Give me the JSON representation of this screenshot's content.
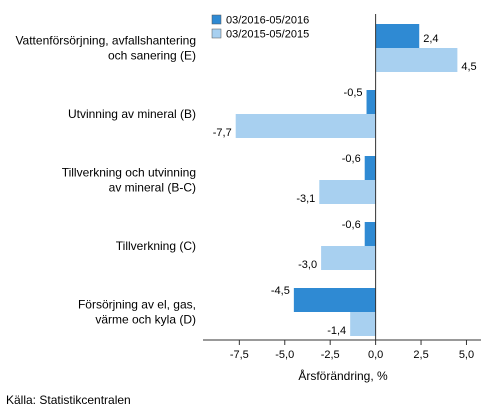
{
  "chart_data": {
    "type": "bar",
    "orientation": "horizontal",
    "categories": [
      [
        "Vattenförsörjning, avfallshantering",
        "och sanering (E)"
      ],
      [
        "Utvinning av mineral (B)"
      ],
      [
        "Tillverkning och utvinning",
        "av mineral (B-C)"
      ],
      [
        "Tillverkning (C)"
      ],
      [
        "Försörjning av el, gas,",
        "värme och kyla (D)"
      ]
    ],
    "series": [
      {
        "name": "03/2016-05/2016",
        "color": "#2f8ad3",
        "values": [
          2.4,
          -0.5,
          -0.6,
          -0.6,
          -4.5
        ],
        "labels": [
          "2,4",
          "-0,5",
          "-0,6",
          "-0,6",
          "-4,5"
        ]
      },
      {
        "name": "03/2015-05/2015",
        "color": "#a8d0f0",
        "values": [
          4.5,
          -7.7,
          -3.1,
          -3.0,
          -1.4
        ],
        "labels": [
          "4,5",
          "-7,7",
          "-3,1",
          "-3,0",
          "-1,4"
        ]
      }
    ],
    "xlim": [
      -9.5,
      5.8
    ],
    "xticks": [
      -7.5,
      -5.0,
      -2.5,
      0.0,
      2.5,
      5.0
    ],
    "xtick_labels": [
      "-7,5",
      "-5,0",
      "-2,5",
      "0,0",
      "2,5",
      "5,0"
    ],
    "xlabel": "Årsförändring, %",
    "legend_position": "top-center",
    "grid": false
  },
  "source": "Källa: Statistikcentralen"
}
